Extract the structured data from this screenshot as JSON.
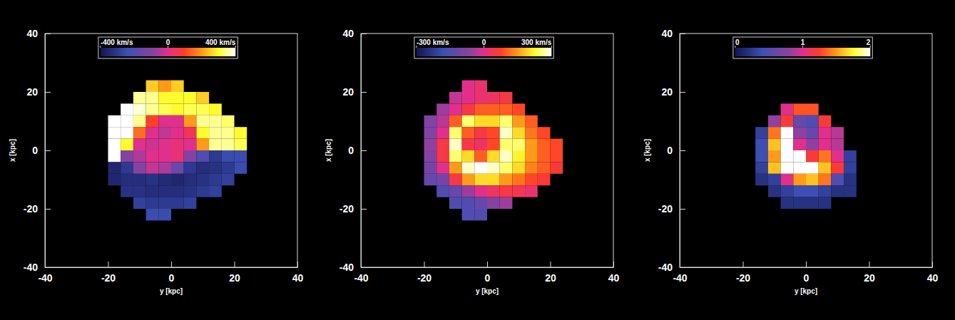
{
  "chart_data": [
    {
      "type": "heatmap",
      "xlabel": "y [kpc]",
      "ylabel": "x [kpc]",
      "xlim": [
        -40,
        40
      ],
      "ylim": [
        -40,
        40
      ],
      "xticks": [
        -40,
        -20,
        0,
        20,
        40
      ],
      "yticks": [
        -40,
        -20,
        0,
        20,
        40
      ],
      "x": [
        -22,
        -18,
        -14,
        -10,
        -6,
        -2,
        2,
        6,
        10,
        14,
        18,
        22
      ],
      "y": [
        22,
        18,
        14,
        10,
        6,
        2,
        -2,
        -6,
        -10,
        -14,
        -18,
        -22
      ],
      "cells": [
        [
          null,
          null,
          null,
          null,
          250,
          200,
          250,
          null,
          null,
          null,
          null,
          null
        ],
        [
          null,
          null,
          null,
          350,
          350,
          300,
          300,
          300,
          250,
          null,
          null,
          null
        ],
        [
          null,
          null,
          400,
          380,
          350,
          320,
          300,
          320,
          320,
          300,
          null,
          null
        ],
        [
          null,
          400,
          400,
          350,
          100,
          0,
          0,
          200,
          350,
          350,
          330,
          null
        ],
        [
          null,
          400,
          400,
          150,
          0,
          -30,
          0,
          50,
          300,
          350,
          350,
          300
        ],
        [
          null,
          400,
          300,
          0,
          -20,
          0,
          20,
          0,
          200,
          350,
          350,
          320
        ],
        [
          null,
          400,
          -100,
          -50,
          0,
          0,
          20,
          -100,
          -200,
          -300,
          -250,
          -250
        ],
        [
          null,
          -350,
          -300,
          -100,
          -30,
          -50,
          -150,
          -300,
          -330,
          -320,
          -300,
          -250
        ],
        [
          null,
          -350,
          -330,
          -330,
          -320,
          -340,
          -350,
          -330,
          -320,
          -300,
          -280,
          null
        ],
        [
          null,
          null,
          -320,
          -320,
          -330,
          -330,
          -330,
          -320,
          -300,
          -280,
          null,
          null
        ],
        [
          null,
          null,
          null,
          -280,
          -300,
          -300,
          -300,
          -280,
          null,
          null,
          null,
          null
        ],
        [
          null,
          null,
          null,
          null,
          -250,
          -250,
          null,
          null,
          null,
          null,
          null,
          null
        ]
      ],
      "colorbar": {
        "range": [
          -400,
          400
        ],
        "ticks": [
          {
            "value": -400,
            "label": "-400 km/s"
          },
          0,
          {
            "value": 400,
            "label": "400 km/s"
          }
        ]
      }
    },
    {
      "type": "heatmap",
      "xlabel": "y [kpc]",
      "ylabel": "x [kpc]",
      "xlim": [
        -40,
        40
      ],
      "ylim": [
        -40,
        40
      ],
      "xticks": [
        -40,
        -20,
        0,
        20,
        40
      ],
      "yticks": [
        -40,
        -20,
        0,
        20,
        40
      ],
      "x": [
        -22,
        -18,
        -14,
        -10,
        -6,
        -2,
        2,
        6,
        10,
        14,
        18,
        22
      ],
      "y": [
        22,
        18,
        14,
        10,
        6,
        2,
        -2,
        -6,
        -10,
        -14,
        -18,
        -22
      ],
      "cells": [
        [
          null,
          null,
          null,
          null,
          0,
          20,
          null,
          null,
          null,
          null,
          null,
          null
        ],
        [
          null,
          null,
          null,
          -20,
          0,
          20,
          30,
          50,
          null,
          null,
          null,
          null
        ],
        [
          null,
          null,
          -50,
          0,
          50,
          100,
          100,
          100,
          80,
          null,
          null,
          null
        ],
        [
          null,
          -80,
          -30,
          100,
          250,
          200,
          200,
          250,
          150,
          100,
          null,
          null
        ],
        [
          null,
          -80,
          0,
          250,
          100,
          50,
          80,
          280,
          200,
          120,
          80,
          null
        ],
        [
          null,
          -60,
          50,
          280,
          50,
          30,
          80,
          250,
          250,
          150,
          100,
          80
        ],
        [
          null,
          -80,
          50,
          250,
          200,
          100,
          200,
          280,
          220,
          150,
          100,
          80
        ],
        [
          null,
          -100,
          0,
          150,
          280,
          300,
          280,
          250,
          200,
          130,
          100,
          60
        ],
        [
          null,
          -120,
          -100,
          50,
          150,
          200,
          200,
          150,
          120,
          80,
          60,
          null
        ],
        [
          null,
          null,
          -150,
          -120,
          -50,
          0,
          30,
          50,
          40,
          20,
          null,
          null
        ],
        [
          null,
          null,
          null,
          -150,
          -150,
          -120,
          -80,
          -50,
          null,
          null,
          null,
          null
        ],
        [
          null,
          null,
          null,
          null,
          -150,
          -150,
          null,
          null,
          null,
          null,
          null,
          null
        ]
      ],
      "colorbar": {
        "range": [
          -300,
          300
        ],
        "ticks": [
          {
            "value": -300,
            "label": "-300 km/s"
          },
          0,
          {
            "value": 300,
            "label": "300 km/s"
          }
        ]
      }
    },
    {
      "type": "heatmap",
      "xlabel": "y [kpc]",
      "ylabel": "x [kpc]",
      "xlim": [
        -40,
        40
      ],
      "ylim": [
        -40,
        40
      ],
      "xticks": [
        -40,
        -20,
        0,
        20,
        40
      ],
      "yticks": [
        -40,
        -20,
        0,
        20,
        40
      ],
      "x": [
        -22,
        -18,
        -14,
        -10,
        -6,
        -2,
        2,
        6,
        10,
        14,
        18,
        22
      ],
      "y": [
        22,
        18,
        14,
        10,
        6,
        2,
        -2,
        -6,
        -10,
        -14,
        -18,
        -22
      ],
      "cells": [
        [
          null,
          null,
          null,
          null,
          null,
          null,
          null,
          null,
          null,
          null,
          null,
          null
        ],
        [
          null,
          null,
          null,
          null,
          null,
          null,
          null,
          null,
          null,
          null,
          null,
          null
        ],
        [
          null,
          null,
          null,
          null,
          1.0,
          1.3,
          1.3,
          null,
          null,
          null,
          null,
          null
        ],
        [
          null,
          null,
          null,
          0.8,
          1.2,
          0.6,
          0.5,
          1.2,
          null,
          null,
          null,
          null
        ],
        [
          null,
          null,
          0.3,
          1.4,
          2,
          0.8,
          0.6,
          1.0,
          0.9,
          null,
          null,
          null
        ],
        [
          null,
          null,
          0.4,
          1.6,
          2,
          1.0,
          0.8,
          1.0,
          0.9,
          null,
          null,
          null
        ],
        [
          null,
          null,
          0.4,
          1.5,
          2,
          2,
          1.2,
          1.4,
          1.0,
          0.3,
          null,
          null
        ],
        [
          null,
          null,
          0.3,
          1.6,
          2,
          2,
          2,
          1.6,
          1.2,
          0.3,
          null,
          null
        ],
        [
          null,
          null,
          0.2,
          0.3,
          1.0,
          1.5,
          1.6,
          1.4,
          0.5,
          0.2,
          null,
          null
        ],
        [
          null,
          null,
          null,
          0.2,
          0.3,
          0.4,
          0.4,
          0.3,
          0.2,
          0.2,
          null,
          null
        ],
        [
          null,
          null,
          null,
          null,
          0.2,
          0.2,
          0.2,
          0.2,
          null,
          null,
          null,
          null
        ],
        [
          null,
          null,
          null,
          null,
          null,
          null,
          null,
          null,
          null,
          null,
          null,
          null
        ]
      ],
      "colorbar": {
        "range": [
          0,
          2
        ],
        "ticks": [
          0,
          1,
          2
        ]
      }
    }
  ]
}
